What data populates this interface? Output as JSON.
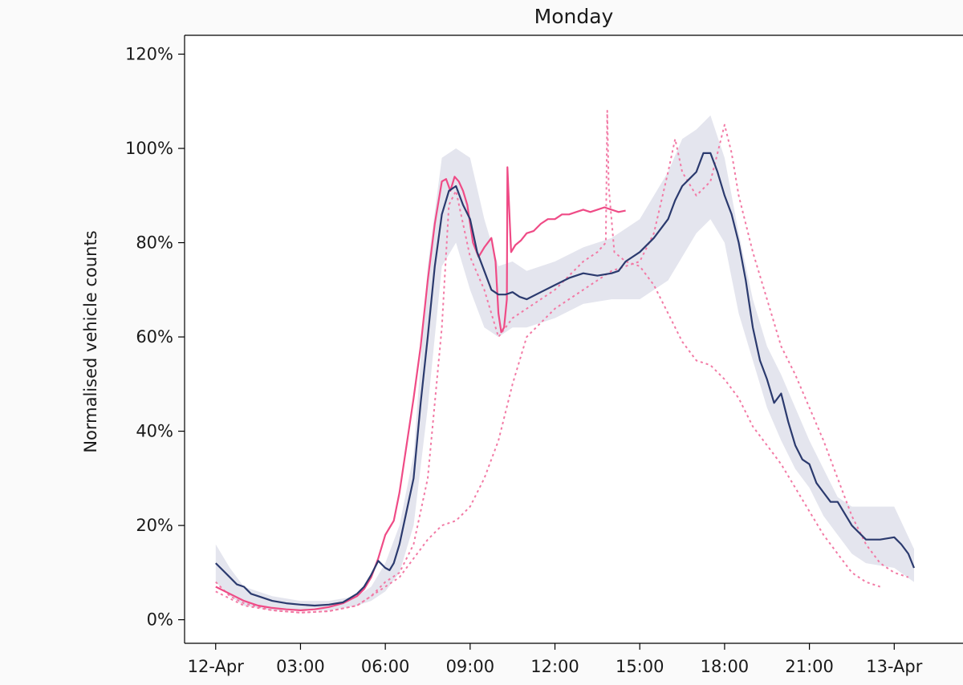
{
  "chart_data": {
    "type": "line",
    "title": "Monday",
    "xlabel": "",
    "ylabel": "Normalised vehicle counts",
    "x_unit": "hours since 12-Apr 00:00",
    "xlim": [
      -1.1,
      27
    ],
    "ylim": [
      -5,
      124
    ],
    "x_ticks": [
      {
        "x": 0,
        "label": "12-Apr"
      },
      {
        "x": 3,
        "label": "03:00"
      },
      {
        "x": 6,
        "label": "06:00"
      },
      {
        "x": 9,
        "label": "09:00"
      },
      {
        "x": 12,
        "label": "12:00"
      },
      {
        "x": 15,
        "label": "15:00"
      },
      {
        "x": 18,
        "label": "18:00"
      },
      {
        "x": 21,
        "label": "21:00"
      },
      {
        "x": 24,
        "label": "13-Apr"
      }
    ],
    "y_ticks": [
      {
        "y": 0,
        "label": "0%"
      },
      {
        "y": 20,
        "label": "20%"
      },
      {
        "y": 40,
        "label": "40%"
      },
      {
        "y": 60,
        "label": "60%"
      },
      {
        "y": 80,
        "label": "80%"
      },
      {
        "y": 100,
        "label": "100%"
      },
      {
        "y": 120,
        "label": "120%"
      }
    ],
    "grid": false,
    "legend": "none",
    "colors": {
      "band": "#e4e5ee",
      "main": "#2b3a6e",
      "pink": "#ef4b86",
      "pink_dotted": "#f27aa5"
    },
    "band": {
      "x": [
        0,
        0.5,
        1,
        2,
        3,
        4,
        5,
        5.5,
        6,
        6.5,
        7,
        7.5,
        8,
        8.5,
        9,
        9.5,
        10,
        10.5,
        11,
        12,
        13,
        14,
        15,
        16,
        16.5,
        17,
        17.5,
        18,
        18.5,
        19,
        19.5,
        20,
        20.5,
        21,
        21.5,
        22,
        22.5,
        23,
        24,
        24.7
      ],
      "lower": [
        8,
        5,
        3,
        2,
        2,
        2,
        3,
        4,
        6,
        10,
        20,
        45,
        75,
        80,
        70,
        62,
        60,
        62,
        62,
        64,
        67,
        68,
        68,
        72,
        77,
        82,
        85,
        80,
        65,
        55,
        45,
        38,
        32,
        28,
        22,
        18,
        14,
        12,
        11,
        8
      ],
      "upper": [
        16,
        11,
        7,
        5,
        4,
        4,
        5,
        7,
        12,
        20,
        35,
        75,
        98,
        100,
        98,
        85,
        75,
        76,
        74,
        76,
        79,
        81,
        85,
        95,
        102,
        104,
        107,
        98,
        82,
        68,
        58,
        52,
        45,
        38,
        32,
        26,
        24,
        24,
        24,
        15
      ]
    },
    "series": [
      {
        "role": "main",
        "style": "solid",
        "x": [
          0,
          0.25,
          0.5,
          0.75,
          1,
          1.25,
          1.5,
          2,
          2.5,
          3,
          3.5,
          4,
          4.5,
          5,
          5.25,
          5.5,
          5.75,
          6,
          6.15,
          6.3,
          6.5,
          6.75,
          7,
          7.25,
          7.5,
          7.75,
          8,
          8.25,
          8.5,
          8.75,
          9,
          9.25,
          9.5,
          9.75,
          10,
          10.25,
          10.5,
          10.75,
          11,
          11.5,
          12,
          12.5,
          13,
          13.5,
          14,
          14.25,
          14.5,
          15,
          15.5,
          16,
          16.25,
          16.5,
          16.75,
          17,
          17.25,
          17.5,
          17.75,
          18,
          18.25,
          18.5,
          18.75,
          19,
          19.25,
          19.5,
          19.75,
          20,
          20.25,
          20.5,
          20.75,
          21,
          21.25,
          21.5,
          21.75,
          22,
          22.5,
          23,
          23.5,
          24,
          24.25,
          24.5,
          24.7
        ],
        "y": [
          12,
          10.5,
          9,
          7.5,
          7,
          5.5,
          5,
          4,
          3.5,
          3.2,
          3,
          3.2,
          3.7,
          5.5,
          7,
          9.5,
          12.5,
          11,
          10.5,
          12,
          16,
          23,
          30,
          46,
          60,
          75,
          86,
          91,
          92,
          88,
          85,
          78,
          74,
          70,
          69,
          69,
          69.5,
          68.5,
          68,
          69.5,
          71,
          72.5,
          73.5,
          73,
          73.5,
          74,
          76,
          78,
          81,
          85,
          89,
          92,
          93.5,
          95,
          99,
          99,
          95,
          90,
          86,
          80,
          72,
          62,
          55,
          51,
          46,
          48,
          42,
          37,
          34,
          33,
          29,
          27,
          25,
          25,
          20,
          17,
          17,
          17.5,
          16,
          14,
          11
        ]
      },
      {
        "role": "pink",
        "style": "solid",
        "x": [
          0,
          0.5,
          1,
          1.5,
          2,
          2.5,
          3,
          3.5,
          4,
          4.5,
          5,
          5.25,
          5.5,
          5.75,
          6,
          6.15,
          6.3,
          6.5,
          6.75,
          7,
          7.25,
          7.5,
          7.75,
          8,
          8.15,
          8.3,
          8.45,
          8.6,
          8.75,
          8.9,
          9.1,
          9.3,
          9.5,
          9.75,
          9.9,
          10,
          10.1,
          10.2,
          10.3,
          10.32,
          10.36,
          10.45,
          10.6,
          10.8,
          11,
          11.25,
          11.5,
          11.75,
          12,
          12.25,
          12.5,
          12.75,
          13,
          13.25,
          13.5,
          13.75,
          14,
          14.25,
          14.5
        ],
        "y": [
          7,
          5.5,
          4,
          3,
          2.5,
          2.2,
          2,
          2.2,
          2.7,
          3.5,
          5,
          6.5,
          9,
          13,
          18,
          19.5,
          21,
          27,
          37,
          47,
          58,
          72,
          84,
          93,
          93.5,
          91,
          94,
          93,
          91,
          88,
          80,
          77,
          79,
          81,
          76,
          65,
          61,
          62,
          68,
          96,
          90,
          78,
          79.5,
          80.5,
          82,
          82.5,
          84,
          85,
          85,
          86,
          86,
          86.5,
          87,
          86.5,
          87,
          87.5,
          87,
          86.5,
          86.8
        ]
      },
      {
        "role": "pink-dotted-a",
        "style": "dotted",
        "x": [
          0,
          0.5,
          1,
          2,
          3,
          4,
          5,
          5.5,
          6,
          6.5,
          7,
          7.5,
          8,
          8.25,
          8.5,
          9,
          9.5,
          10,
          10.5,
          11,
          11.5,
          12,
          12.5,
          13,
          13.5,
          13.8,
          13.85,
          13.9,
          14.1,
          14.5,
          15,
          15.5,
          16,
          16.5,
          17,
          17.5,
          18,
          18.5,
          19,
          19.5,
          20,
          20.5,
          21,
          21.5,
          22,
          22.5,
          23,
          23.5
        ],
        "y": [
          8,
          5,
          3.5,
          2,
          1.5,
          1.8,
          3,
          5,
          8,
          10,
          16,
          30,
          62,
          88,
          91,
          77,
          70,
          60,
          64,
          66,
          68,
          70,
          73,
          76,
          78,
          80,
          108,
          92,
          78,
          76,
          75,
          71,
          65,
          59,
          55,
          54,
          51,
          47,
          41,
          37,
          33,
          28,
          23,
          18,
          14,
          10,
          8,
          7
        ]
      },
      {
        "role": "pink-dotted-b",
        "style": "dotted",
        "x": [
          0,
          0.5,
          1,
          2,
          3,
          4,
          5,
          5.5,
          6,
          6.5,
          7,
          7.5,
          8,
          8.5,
          9,
          9.5,
          10,
          10.5,
          11,
          12,
          13,
          14,
          15,
          15.5,
          16,
          16.25,
          16.5,
          17,
          17.5,
          18,
          18.25,
          18.5,
          19,
          19.5,
          20,
          20.5,
          21,
          21.5,
          22,
          22.5,
          23,
          23.5,
          24,
          24.5
        ],
        "y": [
          6,
          4.5,
          3,
          2,
          1.5,
          1.8,
          3,
          5,
          7,
          9,
          13,
          17,
          20,
          21,
          24,
          30,
          38,
          50,
          60,
          66,
          70,
          74,
          76,
          82,
          95,
          102,
          95,
          90,
          93,
          105,
          99,
          90,
          78,
          68,
          58,
          52,
          45,
          38,
          30,
          22,
          16,
          12,
          10,
          9
        ]
      }
    ]
  }
}
